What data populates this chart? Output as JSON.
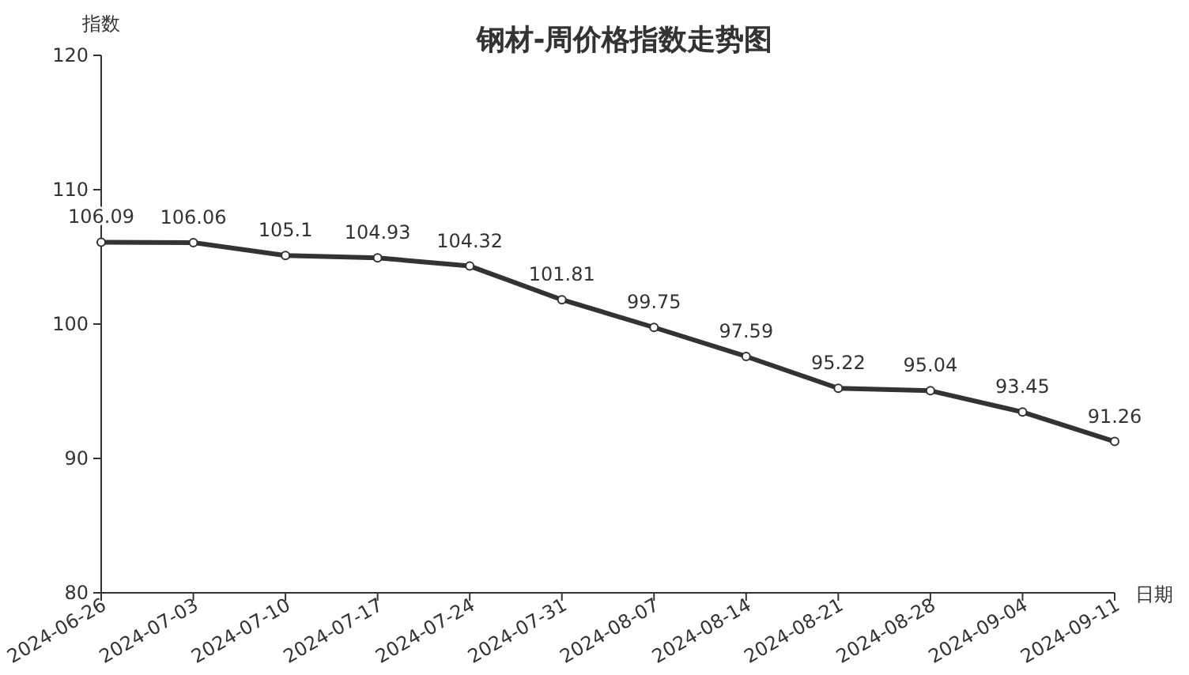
{
  "chart_data": {
    "type": "line",
    "title": "钢材-周价格指数走势图",
    "ylabel": "指数",
    "xlabel": "日期",
    "categories": [
      "2024-06-26",
      "2024-07-03",
      "2024-07-10",
      "2024-07-17",
      "2024-07-24",
      "2024-07-31",
      "2024-08-07",
      "2024-08-14",
      "2024-08-21",
      "2024-08-28",
      "2024-09-04",
      "2024-09-11"
    ],
    "series": [
      {
        "color": "#333333",
        "values": [
          106.09,
          106.06,
          105.1,
          104.93,
          104.32,
          101.81,
          99.75,
          97.59,
          95.22,
          95.04,
          93.45,
          91.26
        ]
      }
    ],
    "ylim": [
      80,
      120
    ],
    "yticks": [
      80,
      90,
      100,
      110,
      120
    ],
    "grid": false,
    "marker": "circle",
    "line_style": "solid",
    "data_labels": true
  }
}
